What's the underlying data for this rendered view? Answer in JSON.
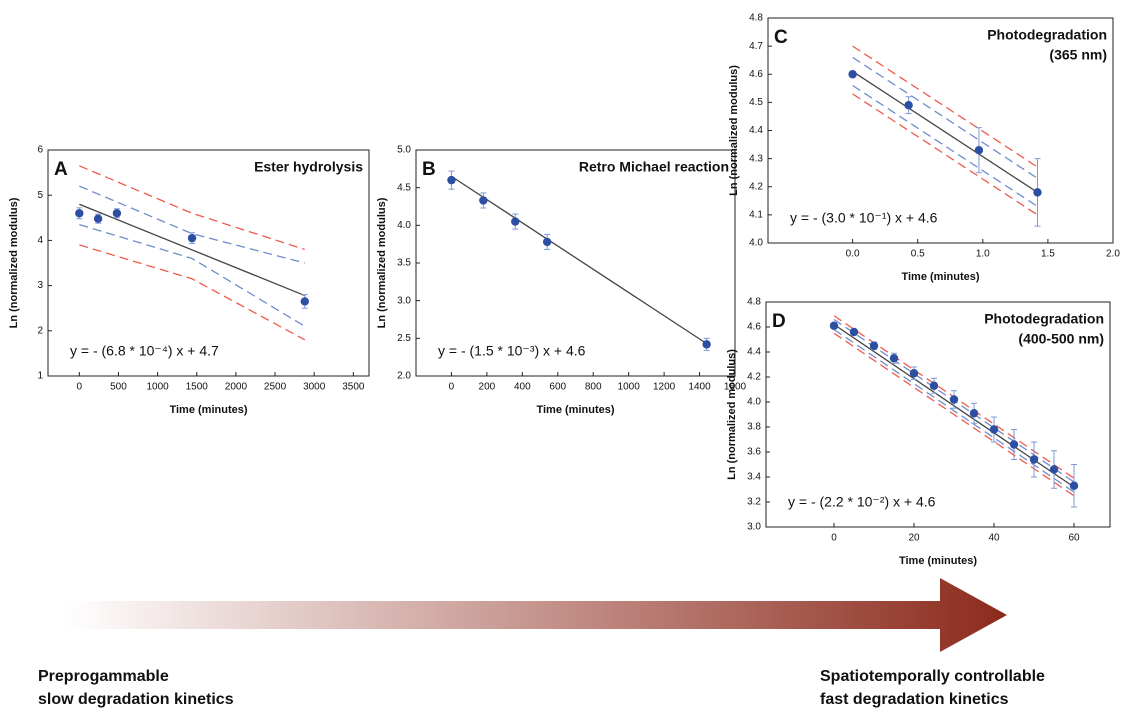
{
  "chart_data": [
    {
      "type": "scatter",
      "label": "A",
      "title": [
        "Ester hydrolysis"
      ],
      "equation": "y = - (6.8 * 10⁻⁴) x + 4.7",
      "xlabel": "Time (minutes)",
      "ylabel": "Ln (normalized modulus)",
      "xlim": [
        -400,
        3700
      ],
      "xticks": [
        0,
        500,
        1000,
        1500,
        2000,
        2500,
        3000,
        3500
      ],
      "ylim": [
        1,
        6
      ],
      "yticks": [
        1,
        2,
        3,
        4,
        5,
        6
      ],
      "points": {
        "color": "#2c4ea3",
        "x": [
          0,
          240,
          480,
          1440,
          2880
        ],
        "values": [
          4.6,
          4.48,
          4.6,
          4.05,
          2.65
        ],
        "errors": [
          0.12,
          0.1,
          0.1,
          0.12,
          0.15
        ]
      },
      "fit": {
        "color": "#444444",
        "x": [
          0,
          2880
        ],
        "values": [
          4.8,
          2.78
        ]
      },
      "bands": [
        {
          "color": "#6f8ccc",
          "x": [
            0,
            1440,
            2880
          ],
          "values": [
            5.2,
            4.15,
            3.5
          ]
        },
        {
          "color": "#6f8ccc",
          "x": [
            0,
            1440,
            2880
          ],
          "values": [
            4.35,
            3.6,
            2.1
          ]
        },
        {
          "color": "#ee5a4c",
          "x": [
            0,
            1440,
            2880
          ],
          "values": [
            5.65,
            4.6,
            3.8
          ]
        },
        {
          "color": "#ee5a4c",
          "x": [
            0,
            1440,
            2880
          ],
          "values": [
            3.9,
            3.15,
            1.8
          ]
        }
      ]
    },
    {
      "type": "scatter",
      "label": "B",
      "title": [
        "Retro Michael reaction"
      ],
      "equation": "y = - (1.5 * 10⁻³) x + 4.6",
      "xlabel": "Time (minutes)",
      "ylabel": "Ln (normalized modulus)",
      "xlim": [
        -200,
        1600
      ],
      "xticks": [
        0,
        200,
        400,
        600,
        800,
        1000,
        1200,
        1400,
        1600
      ],
      "ylim": [
        2,
        5
      ],
      "yticks": [
        {
          "value": 2,
          "label": "2.0"
        },
        2.5,
        {
          "value": 3,
          "label": "3.0"
        },
        3.5,
        {
          "value": 4,
          "label": "4.0"
        },
        4.5,
        {
          "value": 5,
          "label": "5.0"
        }
      ],
      "points": {
        "color": "#2c4ea3",
        "x": [
          0,
          180,
          360,
          540,
          1440
        ],
        "values": [
          4.6,
          4.33,
          4.05,
          3.78,
          2.42
        ],
        "errors": [
          0.12,
          0.1,
          0.1,
          0.1,
          0.08
        ]
      },
      "fit": {
        "color": "#444444",
        "x": [
          0,
          1440
        ],
        "values": [
          4.65,
          2.43
        ]
      },
      "bands": []
    },
    {
      "type": "scatter",
      "label": "C",
      "title": [
        "Photodegradation",
        "(365 nm)"
      ],
      "equation": "y = - (3.0 * 10⁻¹) x + 4.6",
      "xlabel": "Time (minutes)",
      "ylabel": "Ln (normalized modulus)",
      "xlim": [
        -0.65,
        2.0
      ],
      "xticks": [
        {
          "value": 0,
          "label": "0.0"
        },
        0.5,
        {
          "value": 1,
          "label": "1.0"
        },
        1.5,
        {
          "value": 2,
          "label": "2.0"
        }
      ],
      "ylim": [
        4.0,
        4.8
      ],
      "yticks": [
        {
          "value": 4,
          "label": "4.0"
        },
        4.1,
        4.2,
        4.3,
        4.4,
        4.5,
        4.6,
        4.7,
        4.8
      ],
      "points": {
        "color": "#2c4ea3",
        "x": [
          0,
          0.43,
          0.97,
          1.42
        ],
        "values": [
          4.6,
          4.49,
          4.33,
          4.18
        ],
        "errors": [
          0.01,
          0.03,
          0.08,
          0.12
        ]
      },
      "fit": {
        "color": "#444444",
        "x": [
          0,
          1.42
        ],
        "values": [
          4.61,
          4.18
        ]
      },
      "bands": [
        {
          "color": "#6f8ccc",
          "x": [
            0,
            1.42
          ],
          "values": [
            4.66,
            4.23
          ]
        },
        {
          "color": "#6f8ccc",
          "x": [
            0,
            1.42
          ],
          "values": [
            4.56,
            4.13
          ]
        },
        {
          "color": "#ee5a4c",
          "x": [
            0,
            1.42
          ],
          "values": [
            4.7,
            4.27
          ]
        },
        {
          "color": "#ee5a4c",
          "x": [
            0,
            1.42
          ],
          "values": [
            4.53,
            4.1
          ]
        }
      ]
    },
    {
      "type": "scatter",
      "label": "D",
      "title": [
        "Photodegradation",
        "(400-500 nm)"
      ],
      "equation": "y = - (2.2 * 10⁻²) x + 4.6",
      "xlabel": "Time (minutes)",
      "ylabel": "Ln (normalized modulus)",
      "xlim": [
        -17,
        69
      ],
      "xticks": [
        0,
        20,
        40,
        60
      ],
      "ylim": [
        3.0,
        4.8
      ],
      "yticks": [
        {
          "value": 3,
          "label": "3.0"
        },
        3.2,
        3.4,
        3.6,
        3.8,
        {
          "value": 4,
          "label": "4.0"
        },
        4.2,
        4.4,
        4.6,
        4.8
      ],
      "points": {
        "color": "#2c4ea3",
        "x": [
          0,
          5,
          10,
          15,
          20,
          25,
          30,
          35,
          40,
          45,
          50,
          55,
          60
        ],
        "values": [
          4.61,
          4.56,
          4.45,
          4.35,
          4.23,
          4.13,
          4.02,
          3.91,
          3.78,
          3.66,
          3.54,
          3.46,
          3.33
        ],
        "errors": [
          0.01,
          0.02,
          0.03,
          0.04,
          0.05,
          0.06,
          0.07,
          0.08,
          0.1,
          0.12,
          0.14,
          0.15,
          0.17
        ]
      },
      "fit": {
        "color": "#444444",
        "x": [
          0,
          60
        ],
        "values": [
          4.62,
          3.32
        ]
      },
      "bands": [
        {
          "color": "#6f8ccc",
          "x": [
            0,
            60
          ],
          "values": [
            4.66,
            3.36
          ]
        },
        {
          "color": "#6f8ccc",
          "x": [
            0,
            60
          ],
          "values": [
            4.58,
            3.28
          ]
        },
        {
          "color": "#ee5a4c",
          "x": [
            0,
            60
          ],
          "values": [
            4.69,
            3.39
          ]
        },
        {
          "color": "#ee5a4c",
          "x": [
            0,
            60
          ],
          "values": [
            4.55,
            3.25
          ]
        }
      ]
    }
  ],
  "footer": {
    "left": [
      "Preprogammable",
      "slow degradation kinetics"
    ],
    "right": [
      "Spatiotemporally controllable",
      "fast degradation kinetics"
    ]
  }
}
